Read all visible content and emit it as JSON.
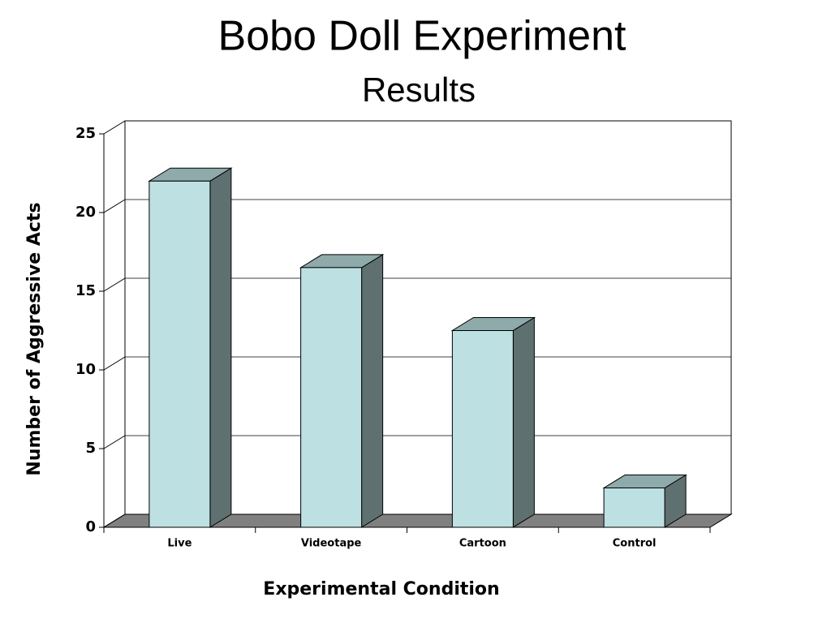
{
  "chart_data": {
    "type": "bar3d",
    "title": "Bobo Doll Experiment",
    "subtitle": "Results",
    "x_label": "Experimental Condition",
    "y_label": "Number of Aggressive Acts",
    "categories": [
      "Live",
      "Videotape",
      "Cartoon",
      "Control"
    ],
    "values": [
      22,
      16.5,
      12.5,
      2.5
    ],
    "color": "#bde0e2",
    "ylim": [
      0,
      25
    ],
    "yticks": [
      0,
      5,
      10,
      15,
      20,
      25
    ],
    "grid": true
  }
}
